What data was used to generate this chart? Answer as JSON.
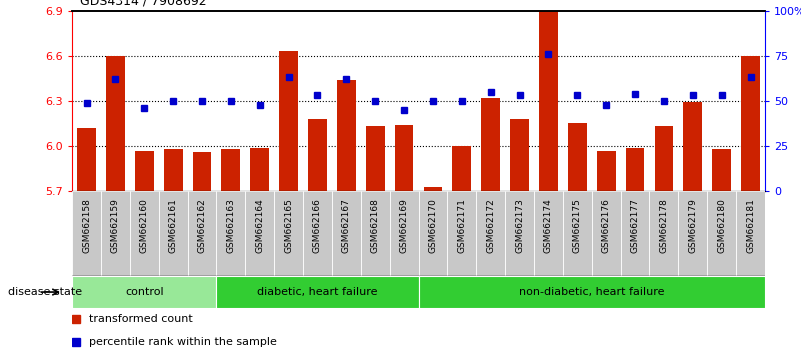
{
  "title": "GDS4314 / 7908692",
  "samples": [
    "GSM662158",
    "GSM662159",
    "GSM662160",
    "GSM662161",
    "GSM662162",
    "GSM662163",
    "GSM662164",
    "GSM662165",
    "GSM662166",
    "GSM662167",
    "GSM662168",
    "GSM662169",
    "GSM662170",
    "GSM662171",
    "GSM662172",
    "GSM662173",
    "GSM662174",
    "GSM662175",
    "GSM662176",
    "GSM662177",
    "GSM662178",
    "GSM662179",
    "GSM662180",
    "GSM662181"
  ],
  "red_values": [
    6.12,
    6.6,
    5.97,
    5.98,
    5.96,
    5.98,
    5.99,
    6.63,
    6.18,
    6.44,
    6.13,
    6.14,
    5.73,
    6.0,
    6.32,
    6.18,
    6.9,
    6.15,
    5.97,
    5.99,
    6.13,
    6.29,
    5.98,
    6.6
  ],
  "blue_percentile": [
    49,
    62,
    46,
    50,
    50,
    50,
    48,
    63,
    53,
    62,
    50,
    45,
    50,
    50,
    55,
    53,
    76,
    53,
    48,
    54,
    50,
    53,
    53,
    63
  ],
  "ymin": 5.7,
  "ymax": 6.9,
  "yticks_left": [
    5.7,
    6.0,
    6.3,
    6.6,
    6.9
  ],
  "yticks_right": [
    0,
    25,
    50,
    75,
    100
  ],
  "ytick_right_labels": [
    "0",
    "25",
    "50",
    "75",
    "100%"
  ],
  "groups": [
    {
      "label": "control",
      "start": 0,
      "end": 5
    },
    {
      "label": "diabetic, heart failure",
      "start": 5,
      "end": 12
    },
    {
      "label": "non-diabetic, heart failure",
      "start": 12,
      "end": 24
    }
  ],
  "group_colors": [
    "#98e898",
    "#32cd32",
    "#32cd32"
  ],
  "bar_color": "#cc2200",
  "dot_color": "#0000cc",
  "cell_bg_color": "#c8c8c8",
  "bar_bottom": 5.7,
  "legend_items": [
    {
      "color": "#cc2200",
      "label": "transformed count"
    },
    {
      "color": "#0000cc",
      "label": "percentile rank within the sample"
    }
  ],
  "disease_state_label": "disease state"
}
